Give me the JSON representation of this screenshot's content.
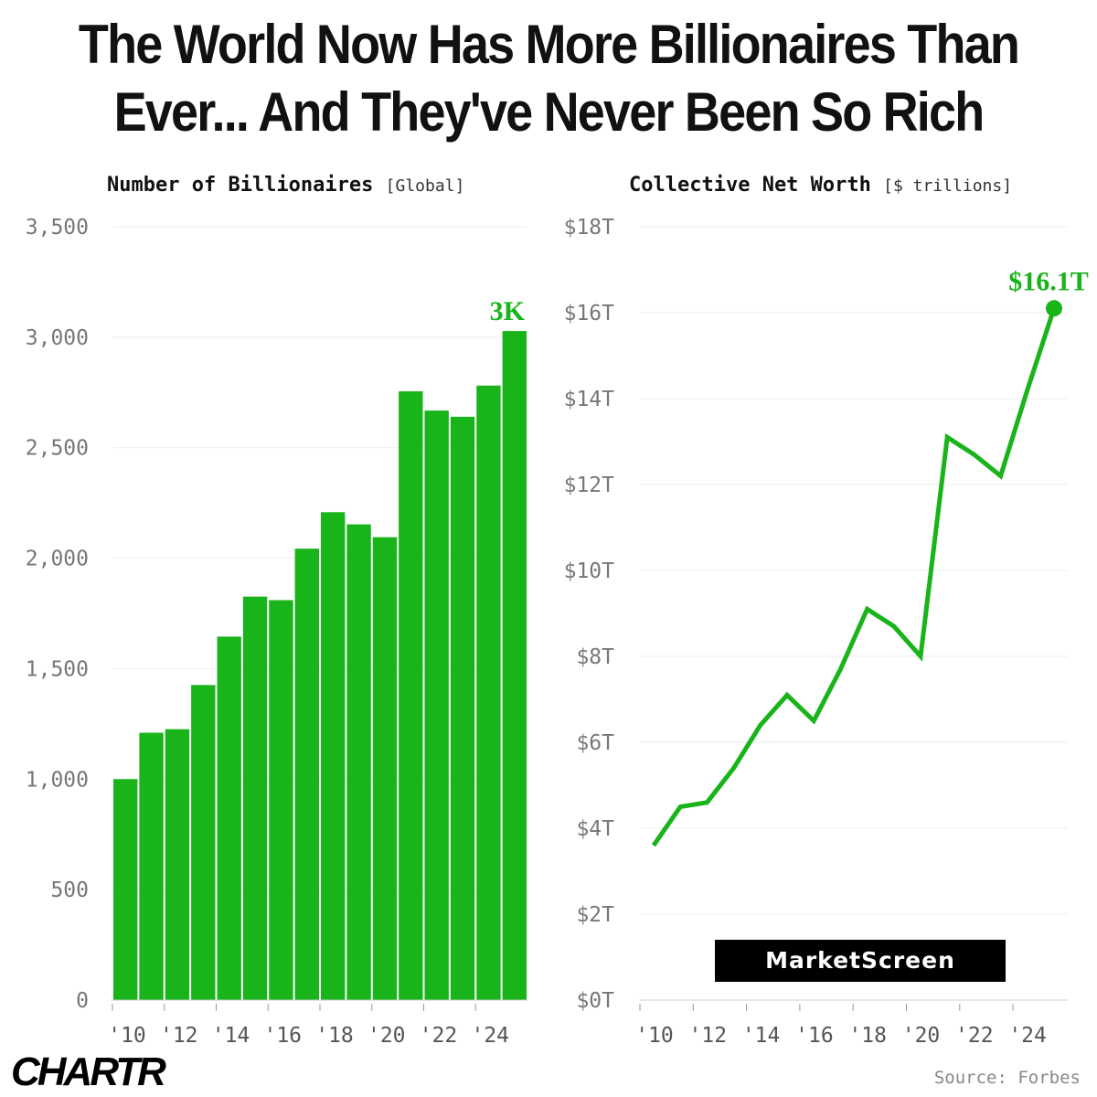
{
  "headline": {
    "line1": "The World Now Has More Billionaires Than",
    "line2": "Ever... And They've Never Been So Rich"
  },
  "colors": {
    "accent": "#19b31a",
    "grid": "#eeeeee",
    "text": "#111111"
  },
  "branding": {
    "logo": "CHARTR",
    "watermark": "MarketScreen",
    "source": "Source: Forbes"
  },
  "chart_data": [
    {
      "type": "bar",
      "title": "Number of Billionaires",
      "unit_note": "[Global]",
      "categories": [
        "2010",
        "2011",
        "2012",
        "2013",
        "2014",
        "2015",
        "2016",
        "2017",
        "2018",
        "2019",
        "2020",
        "2021",
        "2022",
        "2023",
        "2024",
        "2025"
      ],
      "values": [
        1000,
        1210,
        1226,
        1426,
        1645,
        1826,
        1810,
        2043,
        2208,
        2153,
        2095,
        2755,
        2668,
        2640,
        2781,
        3028
      ],
      "ylim": [
        0,
        3500
      ],
      "yticks": [
        0,
        500,
        1000,
        1500,
        2000,
        2500,
        3000,
        3500
      ],
      "ytick_labels": [
        "0",
        "500",
        "1,000",
        "1,500",
        "2,000",
        "2,500",
        "3,000",
        "3,500"
      ],
      "xtick_labels": [
        "'10",
        "'12",
        "'14",
        "'16",
        "'18",
        "'20",
        "'22",
        "'24"
      ],
      "annotation": "3K",
      "grid": true
    },
    {
      "type": "line",
      "title": "Collective Net Worth",
      "unit_note": "[$ trillions]",
      "x": [
        2010,
        2011,
        2012,
        2013,
        2014,
        2015,
        2016,
        2017,
        2018,
        2019,
        2020,
        2021,
        2022,
        2023,
        2024,
        2025
      ],
      "values": [
        3.6,
        4.5,
        4.6,
        5.4,
        6.4,
        7.1,
        6.5,
        7.7,
        9.1,
        8.7,
        8.0,
        13.1,
        12.7,
        12.2,
        14.2,
        16.1
      ],
      "ylim": [
        0,
        18
      ],
      "yticks": [
        0,
        2,
        4,
        6,
        8,
        10,
        12,
        14,
        16,
        18
      ],
      "ytick_labels": [
        "$0T",
        "$2T",
        "$4T",
        "$6T",
        "$8T",
        "$10T",
        "$12T",
        "$14T",
        "$16T",
        "$18T"
      ],
      "xtick_labels": [
        "'10",
        "'12",
        "'14",
        "'16",
        "'18",
        "'20",
        "'22",
        "'24"
      ],
      "annotation": "$16.1T",
      "grid": true
    }
  ]
}
